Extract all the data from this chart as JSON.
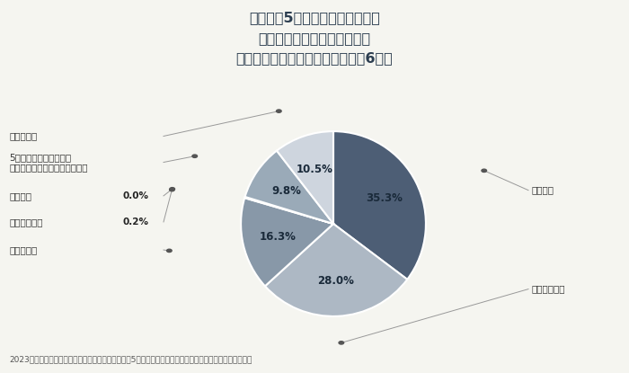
{
  "title_line1": "初任給は5年前と比べて上昇傾向",
  "title_line2": "業績の良し悪しにかかわらず",
  "title_line3": "「上がった」「やや上がった」が6割超",
  "labels": [
    "上がった",
    "やや上がった",
    "変わらない",
    "やや下がった",
    "下がった",
    "5年前とは比較できない\n（大卒を採用していないなど）",
    "わからない"
  ],
  "values": [
    35.3,
    28.0,
    16.3,
    0.2,
    0.0,
    9.8,
    10.5
  ],
  "colors": [
    "#4d5e75",
    "#adb8c4",
    "#8898a8",
    "#c5cdd8",
    "#dde2ea",
    "#9aaab8",
    "#ced5de"
  ],
  "pct_labels": [
    "35.3%",
    "28.0%",
    "16.3%",
    "0.2%",
    "0.0%",
    "9.8%",
    "10.5%"
  ],
  "footnote": "2023年度入社の正社員の初任給（大卒）について、5年前と比較したときの状況をお選びください（一つ）",
  "bg_color": "#f5f5f0",
  "text_color": "#2c3e50"
}
